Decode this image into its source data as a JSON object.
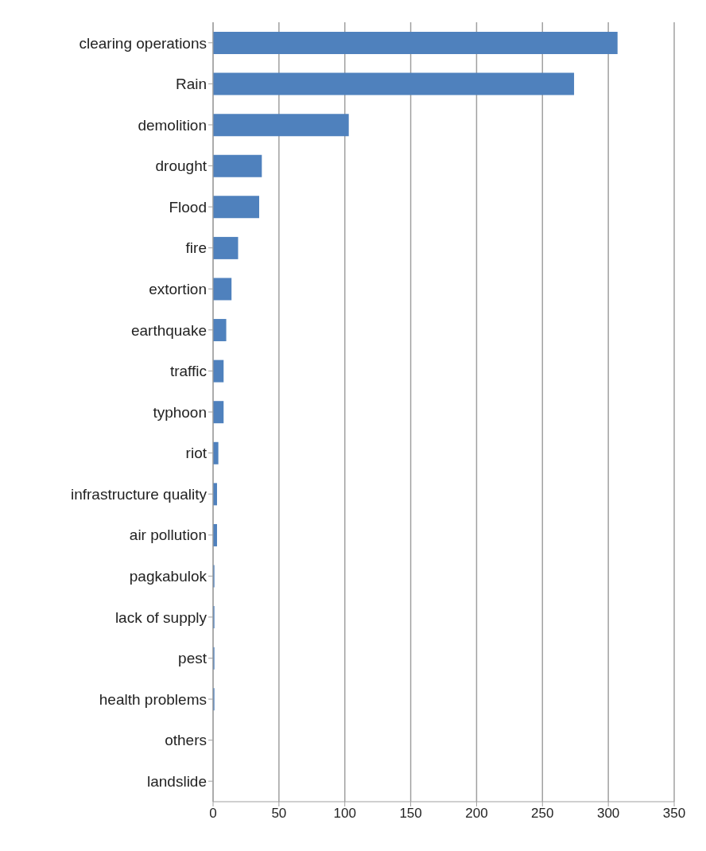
{
  "chart_data": {
    "type": "bar",
    "orientation": "horizontal",
    "categories": [
      "clearing operations",
      "Rain",
      "demolition",
      "drought",
      "Flood",
      "fire",
      "extortion",
      "earthquake",
      "traffic",
      "typhoon",
      "riot",
      "infrastructure quality",
      "air pollution",
      "pagkabulok",
      "lack of supply",
      "pest",
      "health problems",
      "others",
      "landslide"
    ],
    "values": [
      307,
      274,
      103,
      37,
      35,
      19,
      14,
      10,
      8,
      8,
      4,
      3,
      3,
      1,
      1,
      1,
      1,
      0,
      0
    ],
    "color": "#4f81bd",
    "xlim": [
      0,
      350
    ],
    "xticks": [
      0,
      50,
      100,
      150,
      200,
      250,
      300,
      350
    ],
    "grid": "x"
  }
}
